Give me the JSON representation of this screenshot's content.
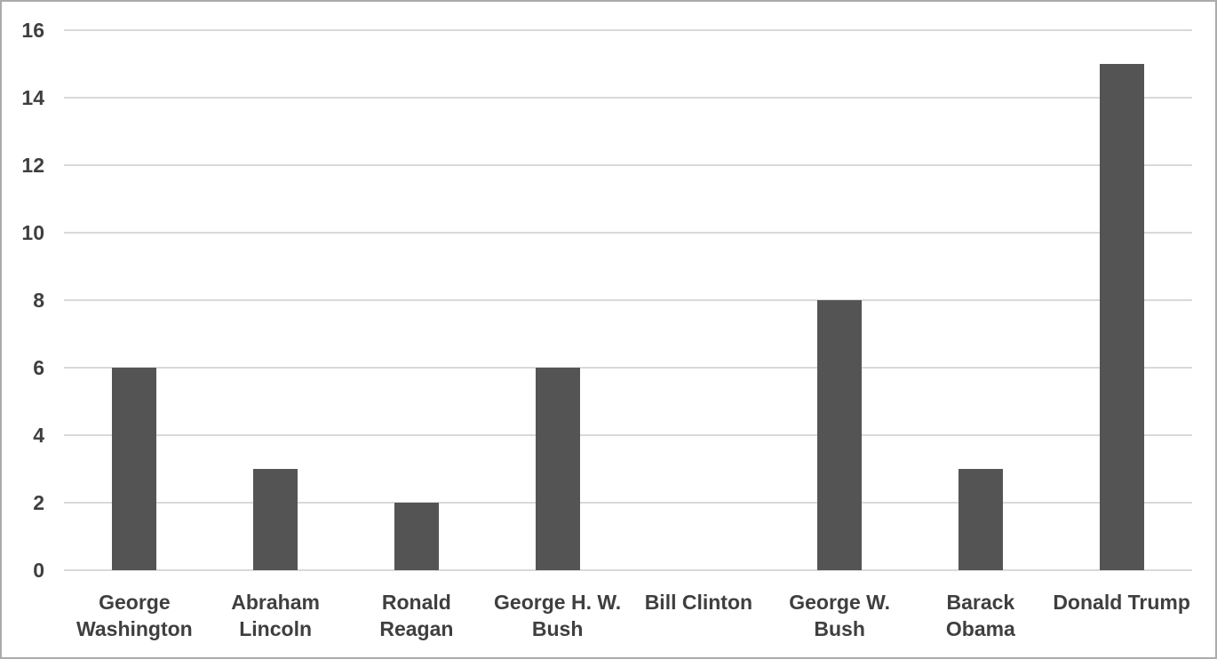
{
  "chart_data": {
    "type": "bar",
    "title": "",
    "xlabel": "",
    "ylabel": "",
    "categories": [
      "George Washington",
      "Abraham Lincoln",
      "Ronald Reagan",
      "George H. W. Bush",
      "Bill Clinton",
      "George W. Bush",
      "Barack Obama",
      "Donald Trump"
    ],
    "values": [
      6,
      3,
      2,
      6,
      0,
      8,
      3,
      15
    ],
    "xtick_lines": [
      [
        "George",
        "Washington"
      ],
      [
        "Abraham",
        "Lincoln"
      ],
      [
        "Ronald",
        "Reagan"
      ],
      [
        "George H. W.",
        "Bush"
      ],
      [
        "Bill Clinton"
      ],
      [
        "George W.",
        "Bush"
      ],
      [
        "Barack",
        "Obama"
      ],
      [
        "Donald Trump"
      ]
    ],
    "ylim": [
      0,
      16
    ],
    "yticks": [
      0,
      2,
      4,
      6,
      8,
      10,
      12,
      14,
      16
    ],
    "grid": "horizontal",
    "legend": "none",
    "colors": {
      "bar": "#545454",
      "gridline": "#d9d9d9",
      "axis_line": "#d9d9d9",
      "tick_label": "#3f3f3f",
      "background": "#ffffff",
      "border": "#ababab"
    }
  }
}
